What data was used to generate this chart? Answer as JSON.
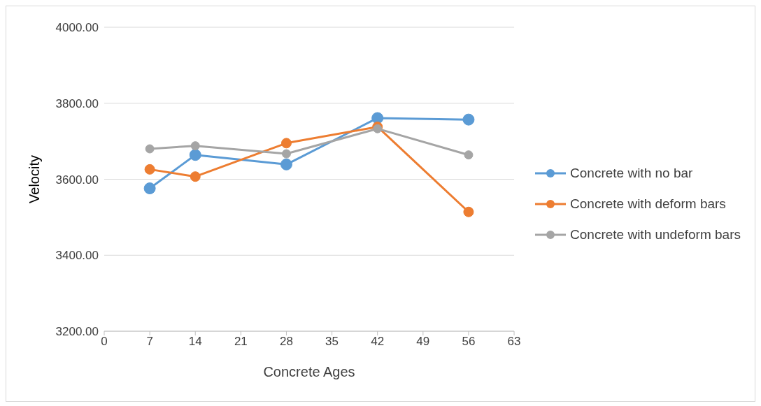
{
  "chart_data": {
    "type": "line",
    "xlabel": "Concrete Ages",
    "ylabel": "Velocity",
    "x": [
      7,
      14,
      28,
      42,
      56
    ],
    "series": [
      {
        "name": "Concrete with no bar",
        "color": "#5b9bd5",
        "values": [
          3576,
          3664,
          3639,
          3761,
          3757
        ]
      },
      {
        "name": "Concrete with deform bars",
        "color": "#ed7d31",
        "values": [
          3626,
          3607,
          3695,
          3738,
          3514
        ]
      },
      {
        "name": "Concrete with undeform bars",
        "color": "#a5a5a5",
        "values": [
          3680,
          3688,
          3667,
          3733,
          3664
        ]
      }
    ],
    "xlim": [
      0,
      63
    ],
    "xticks": [
      0,
      7,
      14,
      21,
      28,
      35,
      42,
      49,
      56,
      63
    ],
    "ylim": [
      3200,
      4000
    ],
    "yticks": [
      {
        "value": 3200,
        "label": "3200.00"
      },
      {
        "value": 3400,
        "label": "3400.00"
      },
      {
        "value": 3600,
        "label": "3600.00"
      },
      {
        "value": 3800,
        "label": "3800.00"
      },
      {
        "value": 4000,
        "label": "4000.00"
      }
    ],
    "grid": "y",
    "legend": "right",
    "marker": "circle",
    "line_style": "solid"
  }
}
